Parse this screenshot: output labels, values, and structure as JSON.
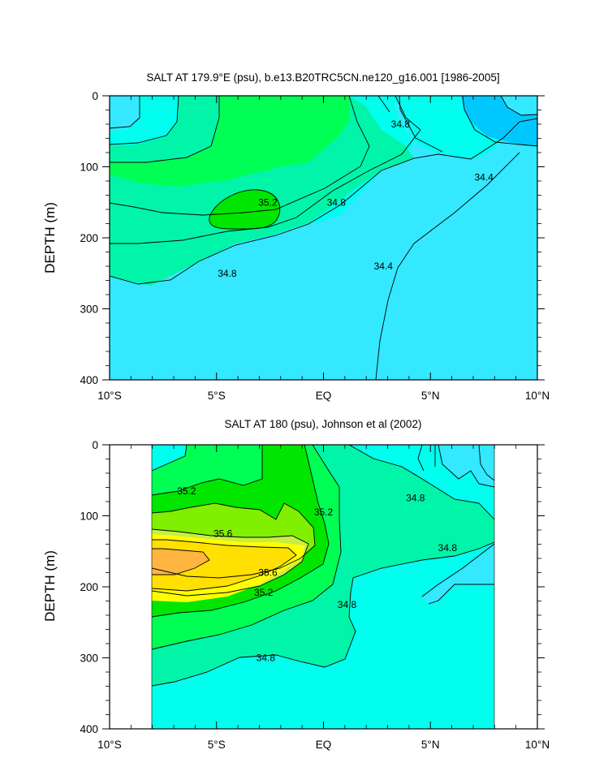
{
  "chart_data": [
    {
      "type": "contour",
      "title": "SALT AT 179.9°E (psu), b.e13.B20TRC5CN.ne120_g16.001 [1986-2005]",
      "ylabel": "DEPTH (m)",
      "xlabel": "",
      "x_ticks": [
        "10°S",
        "5°S",
        "EQ",
        "5°N",
        "10°N"
      ],
      "y_ticks": [
        "0",
        "100",
        "200",
        "300",
        "400"
      ],
      "xlim": [
        -10,
        10
      ],
      "ylim": [
        0,
        400
      ],
      "y_inverted": true,
      "contour_labels": [
        {
          "text": "34.8",
          "lon": 3.6,
          "depth": 40
        },
        {
          "text": "34.4",
          "lon": 7.5,
          "depth": 115
        },
        {
          "text": "35.2",
          "lon": -2.6,
          "depth": 150
        },
        {
          "text": "34.8",
          "lon": 0.6,
          "depth": 150
        },
        {
          "text": "34.8",
          "lon": -4.5,
          "depth": 250
        },
        {
          "text": "34.4",
          "lon": 2.8,
          "depth": 240
        }
      ]
    },
    {
      "type": "contour",
      "title": "SALT AT 180 (psu), Johnson et al (2002)",
      "ylabel": "DEPTH (m)",
      "xlabel": "",
      "x_ticks": [
        "10°S",
        "5°S",
        "EQ",
        "5°N",
        "10°N"
      ],
      "y_ticks": [
        "0",
        "100",
        "200",
        "300",
        "400"
      ],
      "xlim": [
        -10,
        10
      ],
      "ylim": [
        0,
        400
      ],
      "y_inverted": true,
      "data_lon_range": [
        -8,
        8
      ],
      "contour_labels": [
        {
          "text": "35.2",
          "lon": -6.4,
          "depth": 65
        },
        {
          "text": "35.2",
          "lon": 0.0,
          "depth": 95
        },
        {
          "text": "34.8",
          "lon": 4.3,
          "depth": 75
        },
        {
          "text": "35.6",
          "lon": -4.7,
          "depth": 125
        },
        {
          "text": "34.8",
          "lon": 5.8,
          "depth": 145
        },
        {
          "text": "35.6",
          "lon": -2.6,
          "depth": 180
        },
        {
          "text": "35.2",
          "lon": -2.8,
          "depth": 208
        },
        {
          "text": "34.8",
          "lon": 1.1,
          "depth": 225
        },
        {
          "text": "34.8",
          "lon": -2.7,
          "depth": 300
        }
      ]
    }
  ],
  "colors": {
    "c344": "#33e8ff",
    "c340": "#00c8ff",
    "c348": "#00ffee",
    "c352": "#00f5a8",
    "c356": "#00ff55",
    "c360": "#00e600",
    "c364": "#80ef00",
    "c368": "#c8ee44",
    "c372": "#ffff00",
    "c376": "#ffe000",
    "c380": "#ffb540",
    "line": "#000000"
  }
}
